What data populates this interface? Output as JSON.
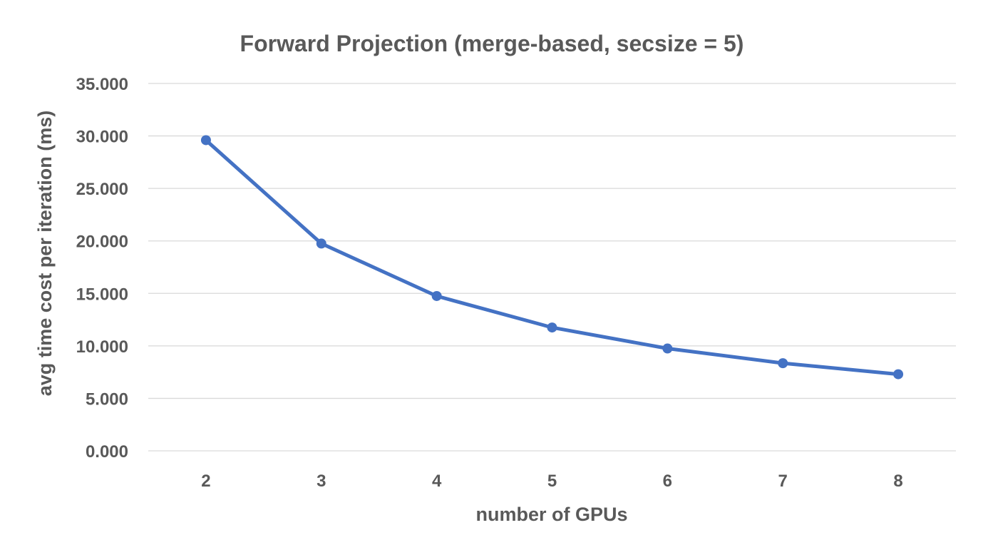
{
  "chart_data": {
    "type": "line",
    "title": "Forward Projection (merge-based, secsize = 5)",
    "xlabel": "number of GPUs",
    "ylabel": "avg time cost per iteration (ms)",
    "categories": [
      "2",
      "3",
      "4",
      "5",
      "6",
      "7",
      "8"
    ],
    "series": [
      {
        "values": [
          29.6,
          19.75,
          14.75,
          11.75,
          9.75,
          8.35,
          7.3
        ]
      }
    ],
    "ylim": [
      0,
      35
    ],
    "yticks": [
      "0.000",
      "5.000",
      "10.000",
      "15.000",
      "20.000",
      "25.000",
      "30.000",
      "35.000"
    ],
    "grid": true,
    "legend": "none",
    "colors": {
      "series": "#4472c4",
      "grid": "#d9d9d9",
      "text": "#595959"
    }
  }
}
